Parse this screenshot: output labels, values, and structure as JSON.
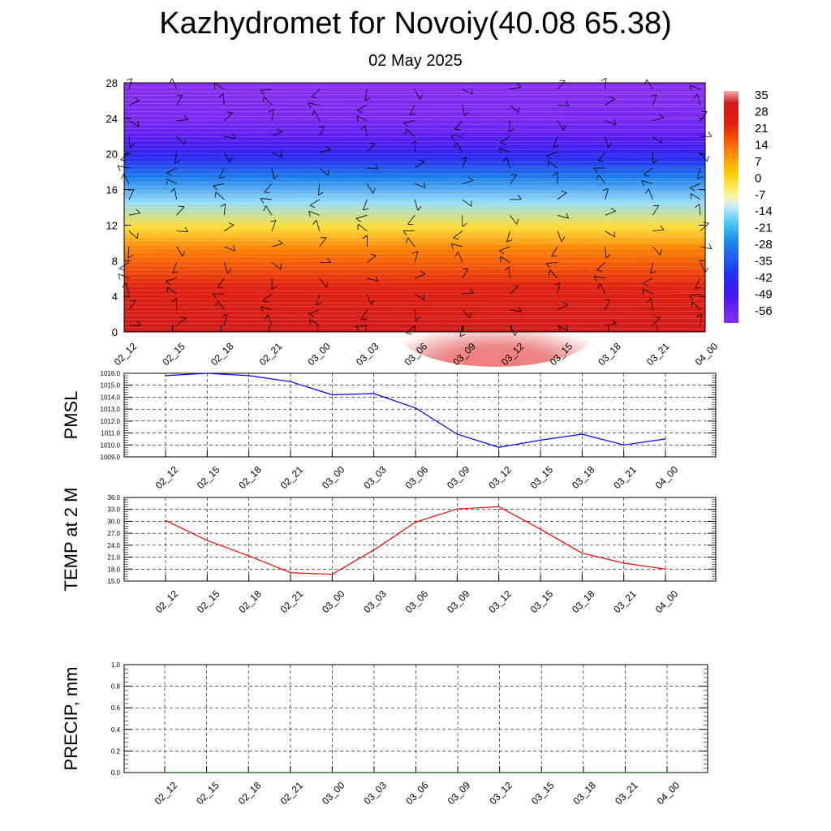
{
  "header": {
    "title": "Kazhydromet for Novoiy(40.08 65.38)",
    "subtitle": "02 May 2025"
  },
  "colors": {
    "pmsl_line": "#0000ff",
    "temp_line": "#ff0000",
    "precip_line": "#006400",
    "grid": "#000000",
    "wind_barb": "#000000"
  },
  "chart_data": [
    {
      "type": "heatmap",
      "name": "upper-air-cross-section",
      "x_categories": [
        "02_12",
        "02_15",
        "02_18",
        "02_21",
        "03_00",
        "03_03",
        "03_06",
        "03_09",
        "03_12",
        "03_15",
        "03_18",
        "03_21",
        "04_00"
      ],
      "y_ticks": [
        "0",
        "4",
        "8",
        "12",
        "16",
        "20",
        "24",
        "28"
      ],
      "ylim": [
        0,
        28
      ],
      "colorbar": {
        "labels": [
          "35",
          "28",
          "21",
          "14",
          "7",
          "0",
          "-7",
          "-14",
          "-21",
          "-28",
          "-35",
          "-42",
          "-49",
          "-56"
        ],
        "stops": [
          {
            "value": 35,
            "color": "#f4b0b0"
          },
          {
            "value": 30,
            "color": "#d11a1a"
          },
          {
            "value": 21,
            "color": "#e02010"
          },
          {
            "value": 14,
            "color": "#ff5a00"
          },
          {
            "value": 7,
            "color": "#ff9a00"
          },
          {
            "value": 0,
            "color": "#ffd200"
          },
          {
            "value": -9,
            "color": "#fff7a0"
          },
          {
            "value": -13,
            "color": "#c8ecff"
          },
          {
            "value": -21,
            "color": "#40c4f0"
          },
          {
            "value": -28,
            "color": "#1a8ae8"
          },
          {
            "value": -35,
            "color": "#1f5ef0"
          },
          {
            "value": -42,
            "color": "#2030f0"
          },
          {
            "value": -49,
            "color": "#3a18f0"
          },
          {
            "value": -56,
            "color": "#6a22f0"
          },
          {
            "value": -62,
            "color": "#8a30f0"
          }
        ]
      },
      "grid": false,
      "wind_barbs": true
    },
    {
      "type": "line",
      "name": "pmsl",
      "ylabel": "PMSL",
      "x": [
        "02_12",
        "02_15",
        "02_18",
        "02_21",
        "03_00",
        "03_03",
        "03_06",
        "03_09",
        "03_12",
        "03_15",
        "03_18",
        "03_21",
        "04_00"
      ],
      "series": [
        {
          "values": [
            1015.8,
            1016.0,
            1015.8,
            1015.3,
            1014.2,
            1014.3,
            1013.1,
            1010.9,
            1009.8,
            1010.4,
            1010.9,
            1010.0,
            1010.5
          ]
        }
      ],
      "ylim": [
        1009.0,
        1016.0
      ],
      "yticks": [
        "1016.0",
        "1015.0",
        "1014.0",
        "1013.0",
        "1012.0",
        "1011.0",
        "1010.0",
        "1009.0"
      ],
      "grid": true
    },
    {
      "type": "line",
      "name": "temp-2m",
      "ylabel": "TEMP at 2 M",
      "x": [
        "02_12",
        "02_15",
        "02_18",
        "02_21",
        "03_00",
        "03_03",
        "03_06",
        "03_09",
        "03_12",
        "03_15",
        "03_18",
        "03_21",
        "04_00"
      ],
      "series": [
        {
          "values": [
            30.2,
            25.2,
            21.3,
            17.1,
            16.7,
            22.8,
            29.8,
            33.1,
            33.7,
            28.0,
            22.0,
            19.5,
            18.0
          ]
        }
      ],
      "ylim": [
        15.0,
        36.0
      ],
      "yticks": [
        "36.0",
        "33.0",
        "30.0",
        "27.0",
        "24.0",
        "21.0",
        "18.0",
        "15.0"
      ],
      "grid": true
    },
    {
      "type": "line",
      "name": "precip",
      "ylabel": "PRECIP, mm",
      "x": [
        "02_12",
        "02_15",
        "02_18",
        "02_21",
        "03_00",
        "03_03",
        "03_06",
        "03_09",
        "03_12",
        "03_15",
        "03_18",
        "03_21",
        "04_00"
      ],
      "series": [
        {
          "values": [
            0,
            0,
            0,
            0,
            0,
            0,
            0,
            0,
            0,
            0,
            0,
            0,
            0
          ]
        }
      ],
      "ylim": [
        0.0,
        1.0
      ],
      "yticks": [
        "1.0",
        "0.8",
        "0.6",
        "0.4",
        "0.2",
        "0.0"
      ],
      "grid": true
    }
  ]
}
